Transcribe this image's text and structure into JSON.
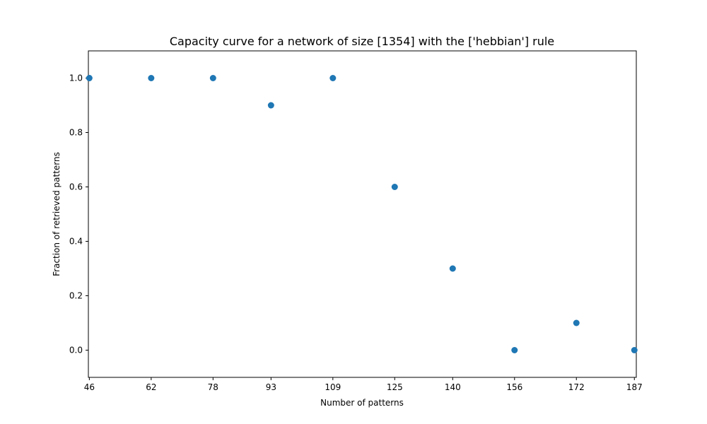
{
  "chart_data": {
    "type": "scatter",
    "title": "Capacity curve for a network of size [1354] with the ['hebbian'] rule",
    "xlabel": "Number of patterns",
    "ylabel": "Fraction of retrieved patterns",
    "x": [
      46,
      62,
      78,
      93,
      109,
      125,
      140,
      156,
      172,
      187
    ],
    "y": [
      1.0,
      1.0,
      1.0,
      0.9,
      1.0,
      0.6,
      0.3,
      0.0,
      0.1,
      0.0
    ],
    "x_ticks": [
      "46",
      "62",
      "78",
      "93",
      "109",
      "125",
      "140",
      "156",
      "172",
      "187"
    ],
    "y_ticks": [
      "0.0",
      "0.2",
      "0.4",
      "0.6",
      "0.8",
      "1.0"
    ],
    "y_tick_values": [
      0.0,
      0.2,
      0.4,
      0.6,
      0.8,
      1.0
    ],
    "xlim": [
      45.75,
      187.5
    ],
    "ylim": [
      -0.1,
      1.1
    ],
    "grid": false,
    "marker_color": "#1f77b4"
  }
}
